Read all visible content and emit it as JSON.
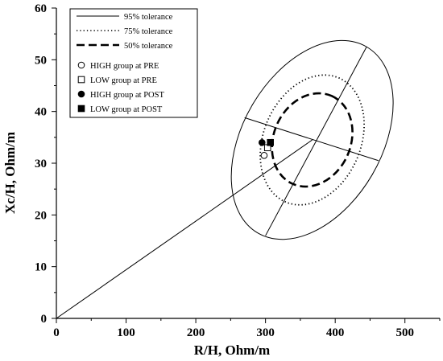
{
  "chart_data": {
    "type": "scatter",
    "subtype": "RXc tolerance ellipses",
    "title": "",
    "xlabel": "R/H, Ohm/m",
    "ylabel": "Xc/H, Ohm/m",
    "xlim": [
      0,
      550
    ],
    "ylim": [
      0,
      60
    ],
    "x_ticks": [
      0,
      100,
      200,
      300,
      400,
      500
    ],
    "y_ticks": [
      0,
      10,
      20,
      30,
      40,
      50,
      60
    ],
    "grid": false,
    "legend": {
      "position": "top-left",
      "entries": [
        {
          "label": "95% tolerance",
          "style": "solid-line"
        },
        {
          "label": "75% tolerance",
          "style": "dotted-line"
        },
        {
          "label": "50% tolerance",
          "style": "dashed-line"
        },
        {
          "label": "HIGH group at PRE",
          "marker": "open-circle"
        },
        {
          "label": "LOW  group at PRE",
          "marker": "open-square"
        },
        {
          "label": "HIGH group at POST",
          "marker": "filled-circle"
        },
        {
          "label": "LOW group at POST",
          "marker": "filled-square"
        }
      ]
    },
    "center": {
      "x": 367,
      "y": 34.5
    },
    "reference_line": {
      "from": [
        0,
        0
      ],
      "to": [
        367,
        34.5
      ]
    },
    "ellipses": [
      {
        "label": "95% tolerance",
        "style": "solid",
        "center": [
          367,
          34.5
        ],
        "major_axis_end": [
          445,
          52.5
        ],
        "minor_axis_end": [
          462,
          30.5
        ]
      },
      {
        "label": "75% tolerance",
        "style": "dotted",
        "center": [
          367,
          34.5
        ],
        "major_axis_end": [
          405,
          46.5
        ],
        "minor_axis_end": [
          433,
          31.5
        ]
      },
      {
        "label": "50% tolerance",
        "style": "dashed",
        "center": [
          367,
          34.5
        ],
        "major_axis_end": [
          395,
          43
        ],
        "minor_axis_end": [
          419,
          32
        ]
      }
    ],
    "axes_lines": [
      {
        "name": "major-axis",
        "from": [
          300,
          16
        ],
        "to": [
          445,
          52.5
        ]
      },
      {
        "name": "minor-axis",
        "from": [
          270,
          38.8
        ],
        "to": [
          462,
          30.5
        ]
      }
    ],
    "points": [
      {
        "label": "HIGH group at PRE",
        "x": 298,
        "y": 31.5,
        "marker": "open-circle"
      },
      {
        "label": "LOW  group at PRE",
        "x": 303,
        "y": 33,
        "marker": "open-square"
      },
      {
        "label": "HIGH group at POST",
        "x": 295,
        "y": 34,
        "marker": "filled-circle"
      },
      {
        "label": "LOW group at POST",
        "x": 307,
        "y": 34,
        "marker": "filled-square"
      }
    ]
  }
}
